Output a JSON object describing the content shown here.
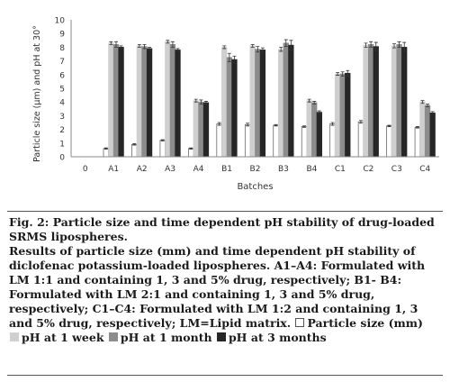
{
  "chart_data": {
    "type": "bar",
    "xlabel": "Batches",
    "ylabel": "Particle size (µm) and pH at 30°",
    "ylim": [
      0,
      10
    ],
    "yticks": [
      0,
      1,
      2,
      3,
      4,
      5,
      6,
      7,
      8,
      9,
      10
    ],
    "x_origin_label": "0",
    "grid": false,
    "categories": [
      "A1",
      "A2",
      "A3",
      "A4",
      "B1",
      "B2",
      "B3",
      "B4",
      "C1",
      "C2",
      "C3",
      "C4"
    ],
    "series": [
      {
        "name": "Particle size (mm)",
        "color": "#ffffff",
        "values": [
          0.6,
          0.9,
          1.2,
          0.6,
          2.4,
          2.35,
          2.3,
          2.2,
          2.4,
          2.55,
          2.25,
          2.15
        ]
      },
      {
        "name": "pH at 1 week",
        "color": "#cfcfcf",
        "values": [
          8.3,
          8.1,
          8.4,
          4.1,
          8.0,
          8.1,
          7.85,
          4.1,
          6.05,
          8.15,
          8.1,
          4.0
        ]
      },
      {
        "name": "pH at 1 month",
        "color": "#8c8c8c",
        "values": [
          8.2,
          8.05,
          8.2,
          4.0,
          7.25,
          7.85,
          8.3,
          3.95,
          6.05,
          8.2,
          8.2,
          3.75
        ]
      },
      {
        "name": "pH at 3 months",
        "color": "#262626",
        "values": [
          8.0,
          7.9,
          7.8,
          3.95,
          7.1,
          7.8,
          8.15,
          3.25,
          6.1,
          8.05,
          8.0,
          3.2
        ]
      }
    ],
    "errors": [
      [
        0.05,
        0.05,
        0.05,
        0.05,
        0.1,
        0.1,
        0.05,
        0.05,
        0.1,
        0.1,
        0.05,
        0.05
      ],
      [
        0.1,
        0.1,
        0.1,
        0.1,
        0.1,
        0.1,
        0.15,
        0.1,
        0.1,
        0.15,
        0.15,
        0.1
      ],
      [
        0.2,
        0.15,
        0.2,
        0.15,
        0.3,
        0.2,
        0.25,
        0.1,
        0.15,
        0.2,
        0.2,
        0.1
      ],
      [
        0.1,
        0.1,
        0.1,
        0.1,
        0.25,
        0.15,
        0.35,
        0.1,
        0.2,
        0.3,
        0.35,
        0.1
      ]
    ]
  },
  "caption": {
    "figure_title": "Fig. 2: Particle size and time dependent pH stability of drug-loaded SRMS lipospheres.",
    "description": "Results of particle size (mm) and time dependent pH stability of diclofenac potassium-loaded lipospheres. A1–A4: Formulated with LM 1:1 and containing 1, 3 and 5% drug, respectively; B1- B4: Formulated with LM 2:1 and containing 1, 3 and 5% drug, respectively; C1–C4: Formulated with LM 1:2 and containing 1, 3 and 5% drug, respectively; LM=Lipid matrix.",
    "legend": [
      {
        "label": "Particle size (mm)",
        "color": "#ffffff"
      },
      {
        "label": "pH at 1 week",
        "color": "#cfcfcf"
      },
      {
        "label": "pH at 1 month",
        "color": "#8c8c8c"
      },
      {
        "label": "pH at 3 months",
        "color": "#262626"
      }
    ]
  }
}
